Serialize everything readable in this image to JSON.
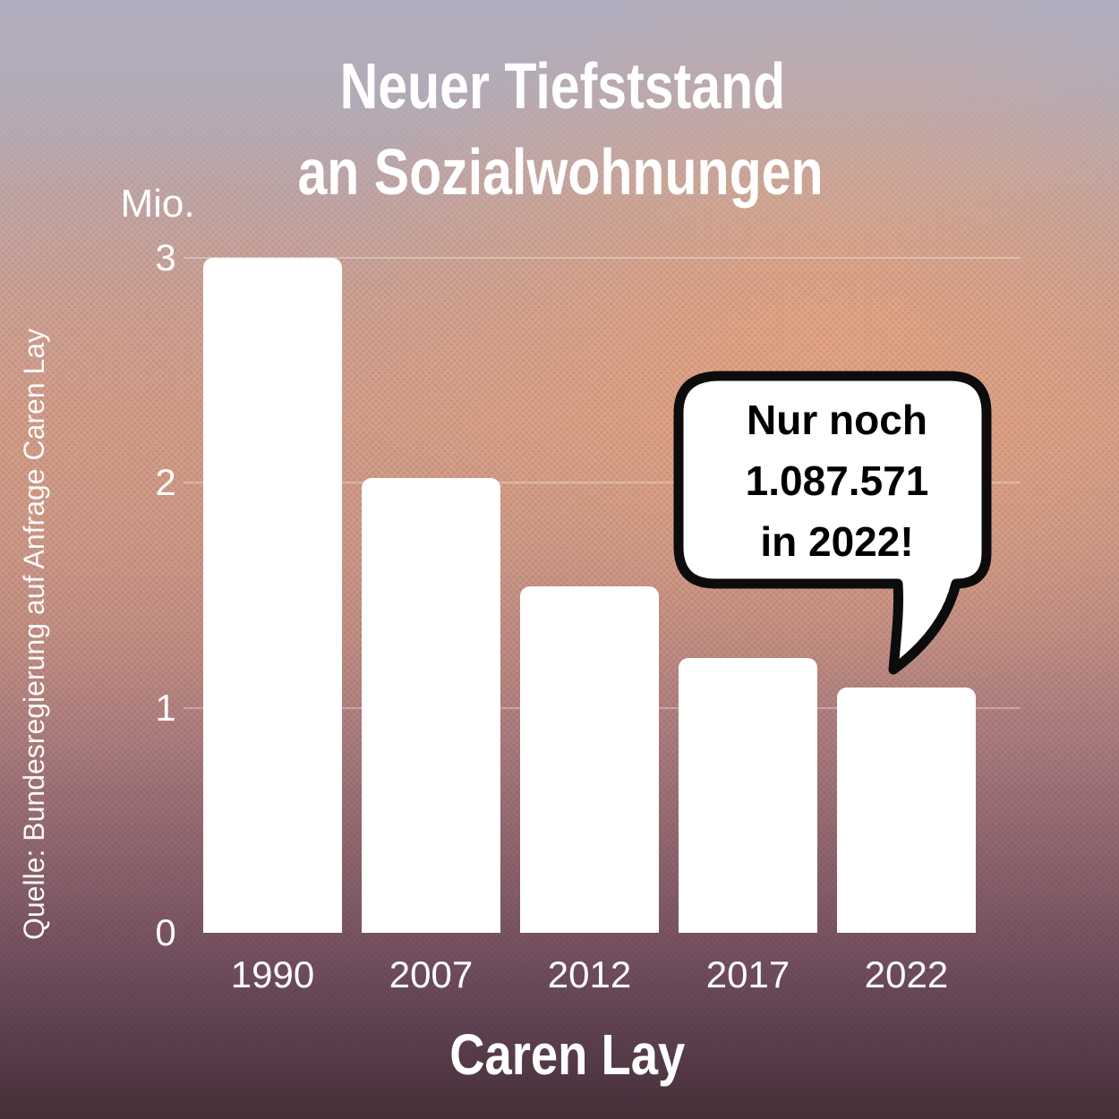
{
  "title": {
    "line1": "Neuer Tiefststand",
    "line2": "an Sozialwohnungen"
  },
  "source_note": "Quelle: Bundesregierung auf Anfrage Caren Lay",
  "footer_badge": "Caren Lay",
  "speech_bubble": {
    "lines": [
      "Nur noch",
      "1.087.571",
      "in 2022!"
    ]
  },
  "chart_data": {
    "type": "bar",
    "title": "Neuer Tiefststand an Sozialwohnungen",
    "unit_label": "Mio.",
    "categories": [
      "1990",
      "2007",
      "2012",
      "2017",
      "2022"
    ],
    "values": [
      3.0,
      2.02,
      1.54,
      1.22,
      1.09
    ],
    "yticks": [
      0,
      1,
      2,
      3
    ],
    "ylim": [
      0,
      3.1
    ],
    "grid": true,
    "bar_color": "#ffffff",
    "annotation": {
      "text": "Nur noch 1.087.571 in 2022!",
      "target_category": "2022",
      "exact_value_2022": 1087571
    },
    "source": "Quelle: Bundesregierung auf Anfrage Caren Lay"
  },
  "colors": {
    "accent_red": "#e00d15",
    "bar_white": "#fffdfd",
    "axis_text": "#ffffff",
    "bubble_fill": "#ffffff",
    "bubble_stroke": "#0c0c0c",
    "background_top": "#b1adbe",
    "background_bottom": "#463039"
  }
}
